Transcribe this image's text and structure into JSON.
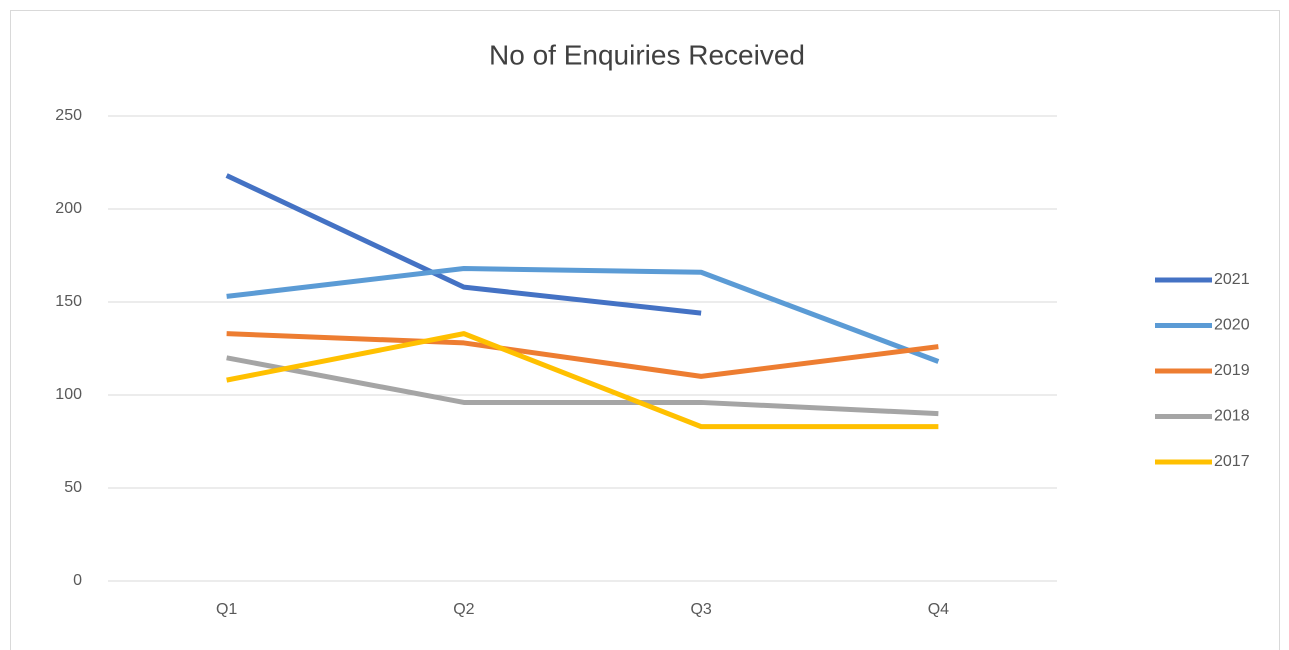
{
  "chart_data": {
    "type": "line",
    "title": "No of Enquiries Received",
    "categories": [
      "Q1",
      "Q2",
      "Q3",
      "Q4"
    ],
    "series": [
      {
        "name": "2021",
        "color": "#4472c4",
        "values": [
          218,
          158,
          144,
          null
        ]
      },
      {
        "name": "2020",
        "color": "#5b9bd5",
        "values": [
          153,
          168,
          166,
          118
        ]
      },
      {
        "name": "2019",
        "color": "#ed7d31",
        "values": [
          133,
          128,
          110,
          126
        ]
      },
      {
        "name": "2018",
        "color": "#a5a5a5",
        "values": [
          120,
          96,
          96,
          90
        ]
      },
      {
        "name": "2017",
        "color": "#ffc000",
        "values": [
          108,
          133,
          83,
          83
        ]
      }
    ],
    "ylim": [
      0,
      250
    ],
    "yticks": [
      0,
      50,
      100,
      150,
      200,
      250
    ],
    "grid": true,
    "legend": "right"
  }
}
